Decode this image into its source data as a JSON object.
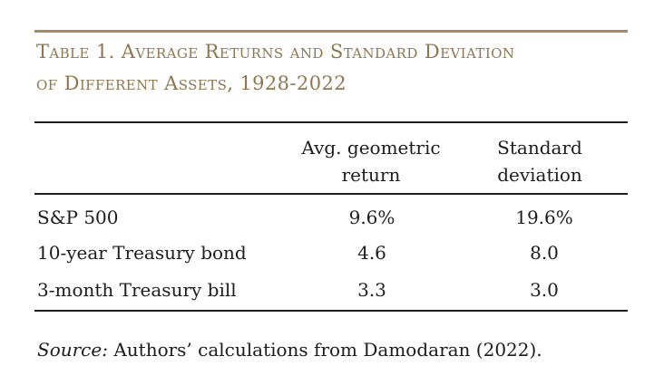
{
  "table": {
    "title_line1": "Table 1. Average Returns and Standard Deviation",
    "title_line2": "of Different Assets, 1928-2022",
    "headers": {
      "return_line1": "Avg. geometric",
      "return_line2": "return",
      "sd_line1": "Standard",
      "sd_line2": "deviation"
    },
    "rows": [
      {
        "asset": "S&P 500",
        "return": "9.6%",
        "sd": "19.6%"
      },
      {
        "asset": "10-year Treasury bond",
        "return": "4.6",
        "sd": "8.0"
      },
      {
        "asset": "3-month Treasury bill",
        "return": "3.3",
        "sd": "3.0"
      }
    ],
    "source_label": "Source:",
    "source_text": " Authors’ calculations from Damodaran (2022)."
  },
  "colors": {
    "title": "#8f7651",
    "gold_rule": "#a48c63",
    "text": "#1c1c1c"
  }
}
